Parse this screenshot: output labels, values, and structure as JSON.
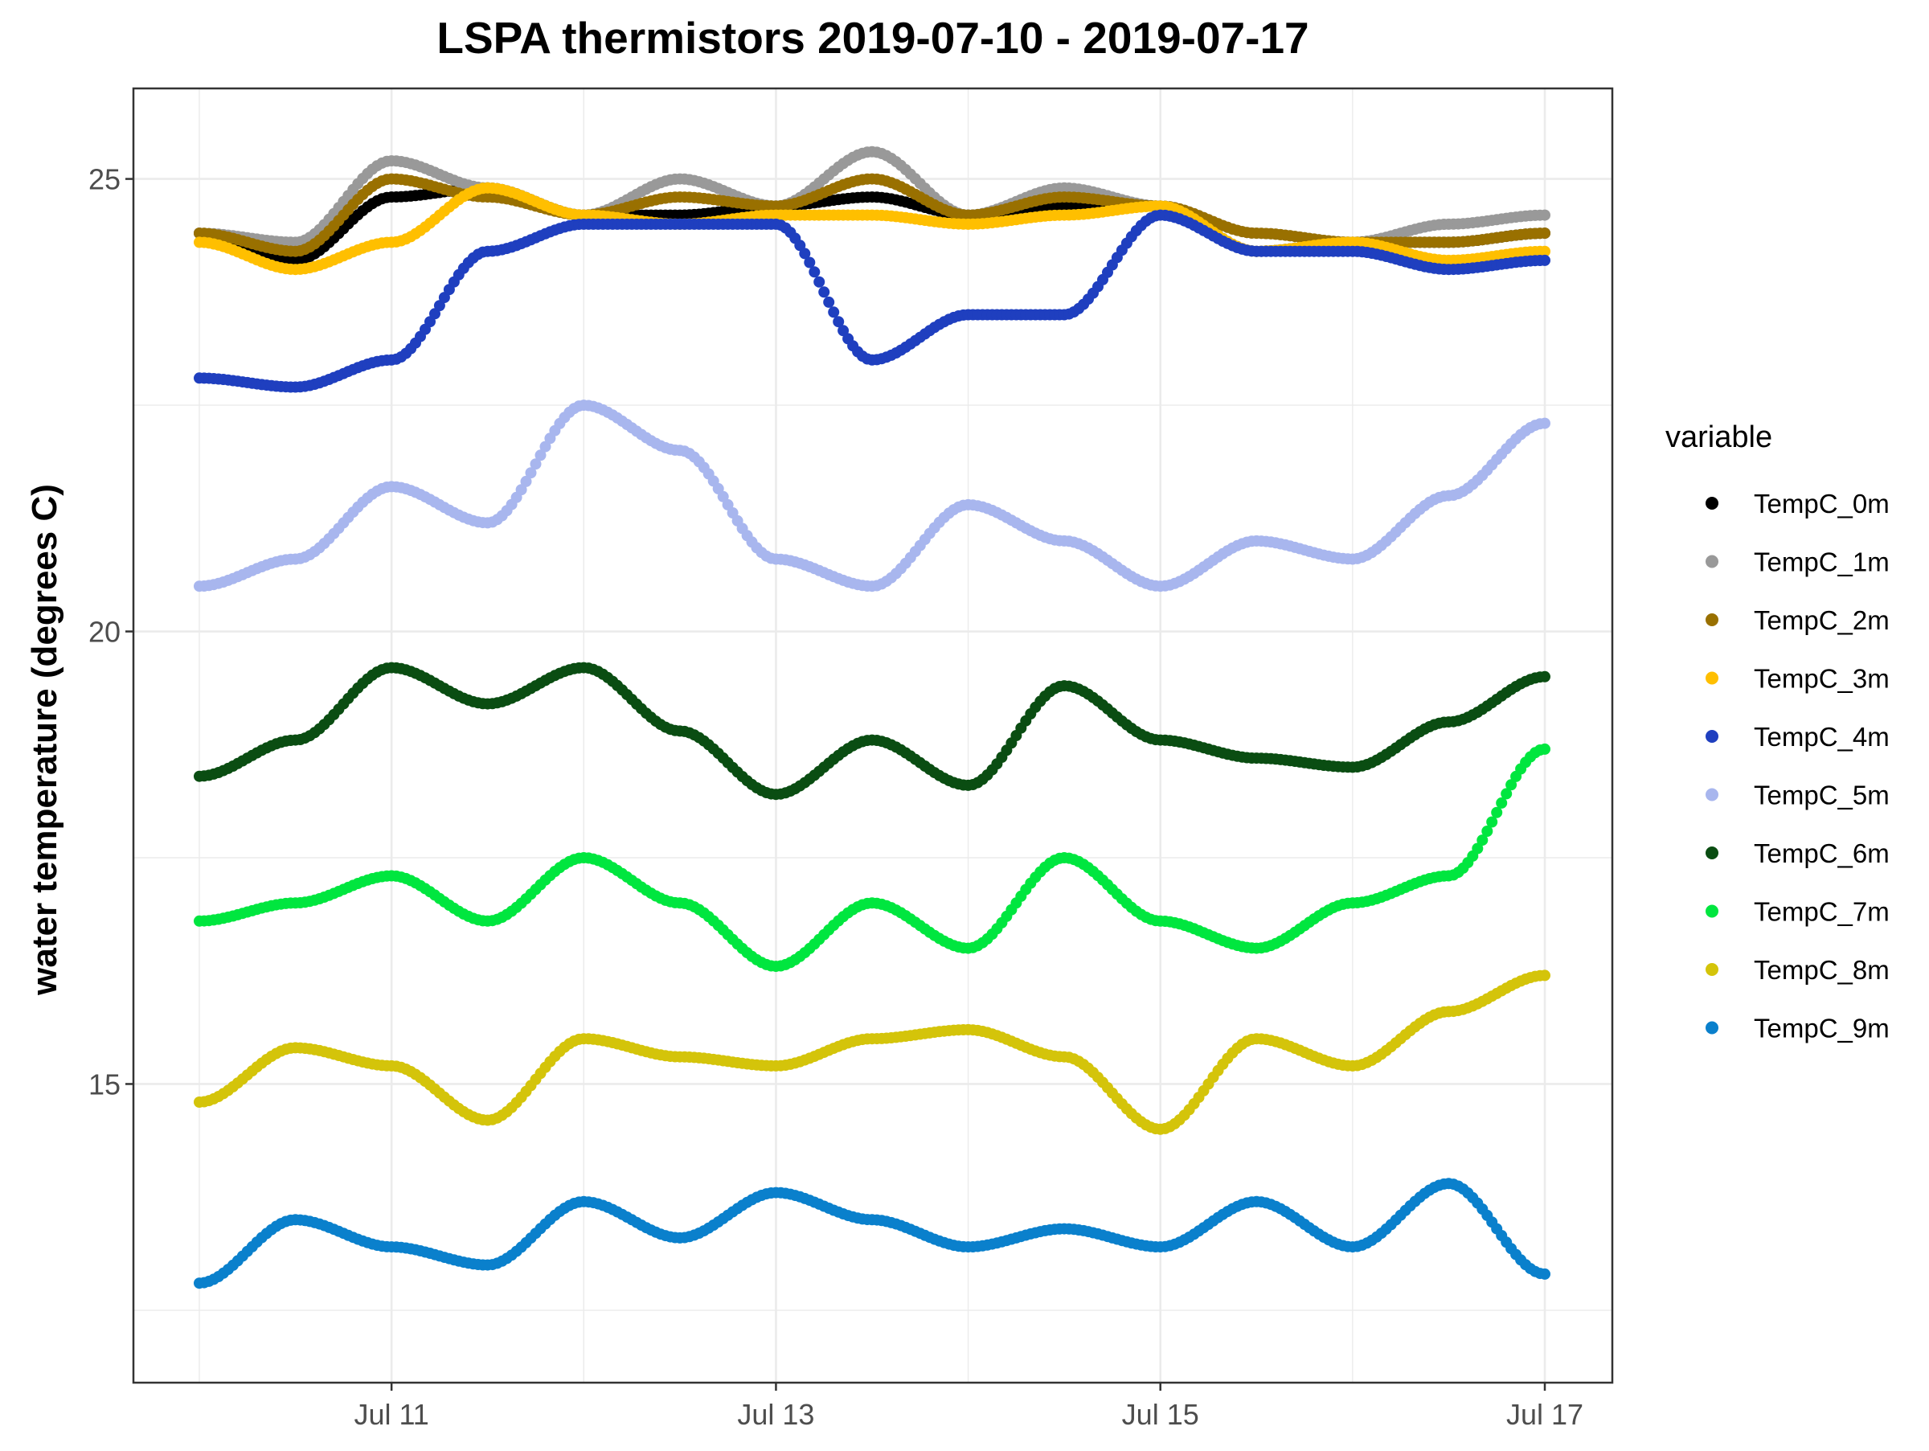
{
  "chart_data": {
    "type": "scatter",
    "title": "LSPA thermistors 2019-07-10 - 2019-07-17",
    "xlabel": "",
    "ylabel": "water temperature (degrees C)",
    "x_range": [
      "2019-07-10 00:00",
      "2019-07-17 00:00"
    ],
    "x_ticks": [
      {
        "x": "2019-07-11",
        "label": "Jul 11"
      },
      {
        "x": "2019-07-13",
        "label": "Jul 13"
      },
      {
        "x": "2019-07-15",
        "label": "Jul 15"
      },
      {
        "x": "2019-07-17",
        "label": "Jul 17"
      }
    ],
    "ylim": [
      11.7,
      26
    ],
    "y_ticks": [
      15,
      20,
      25
    ],
    "grid": true,
    "legend": {
      "title": "variable",
      "position": "right"
    },
    "series": [
      {
        "name": "TempC_0m",
        "color": "#000000",
        "points": [
          [
            "2019-07-10 00:00",
            24.4
          ],
          [
            "2019-07-10 12:00",
            24.1
          ],
          [
            "2019-07-11 00:00",
            24.8
          ],
          [
            "2019-07-11 12:00",
            24.9
          ],
          [
            "2019-07-12 00:00",
            24.6
          ],
          [
            "2019-07-12 12:00",
            24.6
          ],
          [
            "2019-07-13 00:00",
            24.7
          ],
          [
            "2019-07-13 12:00",
            24.8
          ],
          [
            "2019-07-14 00:00",
            24.6
          ],
          [
            "2019-07-14 12:00",
            24.7
          ],
          [
            "2019-07-15 00:00",
            24.7
          ],
          [
            "2019-07-15 12:00",
            24.2
          ],
          [
            "2019-07-16 00:00",
            24.3
          ],
          [
            "2019-07-16 12:00",
            24.3
          ],
          [
            "2019-07-17 00:00",
            24.4
          ]
        ]
      },
      {
        "name": "TempC_1m",
        "color": "#999999",
        "points": [
          [
            "2019-07-10 00:00",
            24.4
          ],
          [
            "2019-07-10 12:00",
            24.3
          ],
          [
            "2019-07-11 00:00",
            25.2
          ],
          [
            "2019-07-11 12:00",
            24.9
          ],
          [
            "2019-07-12 00:00",
            24.6
          ],
          [
            "2019-07-12 12:00",
            25.0
          ],
          [
            "2019-07-13 00:00",
            24.7
          ],
          [
            "2019-07-13 12:00",
            25.3
          ],
          [
            "2019-07-14 00:00",
            24.6
          ],
          [
            "2019-07-14 12:00",
            24.9
          ],
          [
            "2019-07-15 00:00",
            24.7
          ],
          [
            "2019-07-15 12:00",
            24.4
          ],
          [
            "2019-07-16 00:00",
            24.3
          ],
          [
            "2019-07-16 12:00",
            24.5
          ],
          [
            "2019-07-17 00:00",
            24.6
          ]
        ]
      },
      {
        "name": "TempC_2m",
        "color": "#997000",
        "points": [
          [
            "2019-07-10 00:00",
            24.4
          ],
          [
            "2019-07-10 12:00",
            24.2
          ],
          [
            "2019-07-11 00:00",
            25.0
          ],
          [
            "2019-07-11 12:00",
            24.8
          ],
          [
            "2019-07-12 00:00",
            24.6
          ],
          [
            "2019-07-12 12:00",
            24.8
          ],
          [
            "2019-07-13 00:00",
            24.7
          ],
          [
            "2019-07-13 12:00",
            25.0
          ],
          [
            "2019-07-14 00:00",
            24.6
          ],
          [
            "2019-07-14 12:00",
            24.8
          ],
          [
            "2019-07-15 00:00",
            24.7
          ],
          [
            "2019-07-15 12:00",
            24.4
          ],
          [
            "2019-07-16 00:00",
            24.3
          ],
          [
            "2019-07-16 12:00",
            24.3
          ],
          [
            "2019-07-17 00:00",
            24.4
          ]
        ]
      },
      {
        "name": "TempC_3m",
        "color": "#ffbf00",
        "points": [
          [
            "2019-07-10 00:00",
            24.3
          ],
          [
            "2019-07-10 12:00",
            24.0
          ],
          [
            "2019-07-11 00:00",
            24.3
          ],
          [
            "2019-07-11 12:00",
            24.9
          ],
          [
            "2019-07-12 00:00",
            24.6
          ],
          [
            "2019-07-12 12:00",
            24.5
          ],
          [
            "2019-07-13 00:00",
            24.6
          ],
          [
            "2019-07-13 12:00",
            24.6
          ],
          [
            "2019-07-14 00:00",
            24.5
          ],
          [
            "2019-07-14 12:00",
            24.6
          ],
          [
            "2019-07-15 00:00",
            24.7
          ],
          [
            "2019-07-15 12:00",
            24.2
          ],
          [
            "2019-07-16 00:00",
            24.3
          ],
          [
            "2019-07-16 12:00",
            24.1
          ],
          [
            "2019-07-17 00:00",
            24.2
          ]
        ]
      },
      {
        "name": "TempC_4m",
        "color": "#1f3fbf",
        "points": [
          [
            "2019-07-10 00:00",
            22.8
          ],
          [
            "2019-07-10 12:00",
            22.7
          ],
          [
            "2019-07-11 00:00",
            23.0
          ],
          [
            "2019-07-11 12:00",
            24.2
          ],
          [
            "2019-07-12 00:00",
            24.5
          ],
          [
            "2019-07-12 12:00",
            24.5
          ],
          [
            "2019-07-13 00:00",
            24.5
          ],
          [
            "2019-07-13 12:00",
            23.0
          ],
          [
            "2019-07-14 00:00",
            23.5
          ],
          [
            "2019-07-14 12:00",
            23.5
          ],
          [
            "2019-07-15 00:00",
            24.6
          ],
          [
            "2019-07-15 12:00",
            24.2
          ],
          [
            "2019-07-16 00:00",
            24.2
          ],
          [
            "2019-07-16 12:00",
            24.0
          ],
          [
            "2019-07-17 00:00",
            24.1
          ]
        ]
      },
      {
        "name": "TempC_5m",
        "color": "#a8b6ee",
        "points": [
          [
            "2019-07-10 00:00",
            20.5
          ],
          [
            "2019-07-10 12:00",
            20.8
          ],
          [
            "2019-07-11 00:00",
            21.6
          ],
          [
            "2019-07-11 12:00",
            21.2
          ],
          [
            "2019-07-12 00:00",
            22.5
          ],
          [
            "2019-07-12 12:00",
            22.0
          ],
          [
            "2019-07-13 00:00",
            20.8
          ],
          [
            "2019-07-13 12:00",
            20.5
          ],
          [
            "2019-07-14 00:00",
            21.4
          ],
          [
            "2019-07-14 12:00",
            21.0
          ],
          [
            "2019-07-15 00:00",
            20.5
          ],
          [
            "2019-07-15 12:00",
            21.0
          ],
          [
            "2019-07-16 00:00",
            20.8
          ],
          [
            "2019-07-16 12:00",
            21.5
          ],
          [
            "2019-07-17 00:00",
            22.3
          ]
        ]
      },
      {
        "name": "TempC_6m",
        "color": "#0a4d12",
        "points": [
          [
            "2019-07-10 00:00",
            18.4
          ],
          [
            "2019-07-10 12:00",
            18.8
          ],
          [
            "2019-07-11 00:00",
            19.6
          ],
          [
            "2019-07-11 12:00",
            19.2
          ],
          [
            "2019-07-12 00:00",
            19.6
          ],
          [
            "2019-07-12 12:00",
            18.9
          ],
          [
            "2019-07-13 00:00",
            18.2
          ],
          [
            "2019-07-13 12:00",
            18.8
          ],
          [
            "2019-07-14 00:00",
            18.3
          ],
          [
            "2019-07-14 12:00",
            19.4
          ],
          [
            "2019-07-15 00:00",
            18.8
          ],
          [
            "2019-07-15 12:00",
            18.6
          ],
          [
            "2019-07-16 00:00",
            18.5
          ],
          [
            "2019-07-16 12:00",
            19.0
          ],
          [
            "2019-07-17 00:00",
            19.5
          ]
        ]
      },
      {
        "name": "TempC_7m",
        "color": "#00e63f",
        "points": [
          [
            "2019-07-10 00:00",
            16.8
          ],
          [
            "2019-07-10 12:00",
            17.0
          ],
          [
            "2019-07-11 00:00",
            17.3
          ],
          [
            "2019-07-11 12:00",
            16.8
          ],
          [
            "2019-07-12 00:00",
            17.5
          ],
          [
            "2019-07-12 12:00",
            17.0
          ],
          [
            "2019-07-13 00:00",
            16.3
          ],
          [
            "2019-07-13 12:00",
            17.0
          ],
          [
            "2019-07-14 00:00",
            16.5
          ],
          [
            "2019-07-14 12:00",
            17.5
          ],
          [
            "2019-07-15 00:00",
            16.8
          ],
          [
            "2019-07-15 12:00",
            16.5
          ],
          [
            "2019-07-16 00:00",
            17.0
          ],
          [
            "2019-07-16 12:00",
            17.3
          ],
          [
            "2019-07-17 00:00",
            18.7
          ]
        ]
      },
      {
        "name": "TempC_8m",
        "color": "#d4c40a",
        "points": [
          [
            "2019-07-10 00:00",
            14.8
          ],
          [
            "2019-07-10 12:00",
            15.4
          ],
          [
            "2019-07-11 00:00",
            15.2
          ],
          [
            "2019-07-11 12:00",
            14.6
          ],
          [
            "2019-07-12 00:00",
            15.5
          ],
          [
            "2019-07-12 12:00",
            15.3
          ],
          [
            "2019-07-13 00:00",
            15.2
          ],
          [
            "2019-07-13 12:00",
            15.5
          ],
          [
            "2019-07-14 00:00",
            15.6
          ],
          [
            "2019-07-14 12:00",
            15.3
          ],
          [
            "2019-07-15 00:00",
            14.5
          ],
          [
            "2019-07-15 12:00",
            15.5
          ],
          [
            "2019-07-16 00:00",
            15.2
          ],
          [
            "2019-07-16 12:00",
            15.8
          ],
          [
            "2019-07-17 00:00",
            16.2
          ]
        ]
      },
      {
        "name": "TempC_9m",
        "color": "#0a80cc",
        "points": [
          [
            "2019-07-10 00:00",
            12.8
          ],
          [
            "2019-07-10 12:00",
            13.5
          ],
          [
            "2019-07-11 00:00",
            13.2
          ],
          [
            "2019-07-11 12:00",
            13.0
          ],
          [
            "2019-07-12 00:00",
            13.7
          ],
          [
            "2019-07-12 12:00",
            13.3
          ],
          [
            "2019-07-13 00:00",
            13.8
          ],
          [
            "2019-07-13 12:00",
            13.5
          ],
          [
            "2019-07-14 00:00",
            13.2
          ],
          [
            "2019-07-14 12:00",
            13.4
          ],
          [
            "2019-07-15 00:00",
            13.2
          ],
          [
            "2019-07-15 12:00",
            13.7
          ],
          [
            "2019-07-16 00:00",
            13.2
          ],
          [
            "2019-07-16 12:00",
            13.9
          ],
          [
            "2019-07-17 00:00",
            12.9
          ]
        ]
      }
    ]
  }
}
